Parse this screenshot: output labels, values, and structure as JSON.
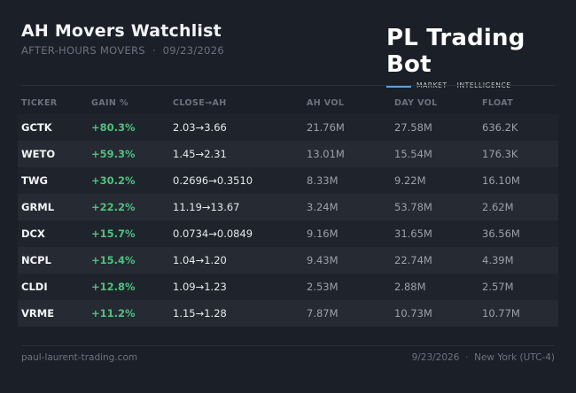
{
  "header": {
    "title": "AH Movers Watchlist",
    "subtitle": "AFTER-HOURS MOVERS  ·  09/23/2026"
  },
  "brand": {
    "name": "PL Trading Bot",
    "tagline": "MARKET INTELLIGENCE",
    "accent_color": "#5aa2e0"
  },
  "table": {
    "columns": [
      "TICKER",
      "GAIN %",
      "CLOSE→AH",
      "AH VOL",
      "DAY VOL",
      "FLOAT"
    ],
    "rows": [
      {
        "ticker": "GCTK",
        "gain": "+80.3%",
        "close_ah": "2.03→3.66",
        "ah_vol": "21.76M",
        "day_vol": "27.58M",
        "float": "636.2K"
      },
      {
        "ticker": "WETO",
        "gain": "+59.3%",
        "close_ah": "1.45→2.31",
        "ah_vol": "13.01M",
        "day_vol": "15.54M",
        "float": "176.3K"
      },
      {
        "ticker": "TWG",
        "gain": "+30.2%",
        "close_ah": "0.2696→0.3510",
        "ah_vol": "8.33M",
        "day_vol": "9.22M",
        "float": "16.10M"
      },
      {
        "ticker": "GRML",
        "gain": "+22.2%",
        "close_ah": "11.19→13.67",
        "ah_vol": "3.24M",
        "day_vol": "53.78M",
        "float": "2.62M"
      },
      {
        "ticker": "DCX",
        "gain": "+15.7%",
        "close_ah": "0.0734→0.0849",
        "ah_vol": "9.16M",
        "day_vol": "31.65M",
        "float": "36.56M"
      },
      {
        "ticker": "NCPL",
        "gain": "+15.4%",
        "close_ah": "1.04→1.20",
        "ah_vol": "9.43M",
        "day_vol": "22.74M",
        "float": "4.39M"
      },
      {
        "ticker": "CLDI",
        "gain": "+12.8%",
        "close_ah": "1.09→1.23",
        "ah_vol": "2.53M",
        "day_vol": "2.88M",
        "float": "2.57M"
      },
      {
        "ticker": "VRME",
        "gain": "+11.2%",
        "close_ah": "1.15→1.28",
        "ah_vol": "7.87M",
        "day_vol": "10.73M",
        "float": "10.77M"
      }
    ],
    "gain_color": "#4fc17f"
  },
  "footer": {
    "site": "paul-laurent-trading.com",
    "right": "9/23/2026  ·  New York (UTC-4)"
  }
}
